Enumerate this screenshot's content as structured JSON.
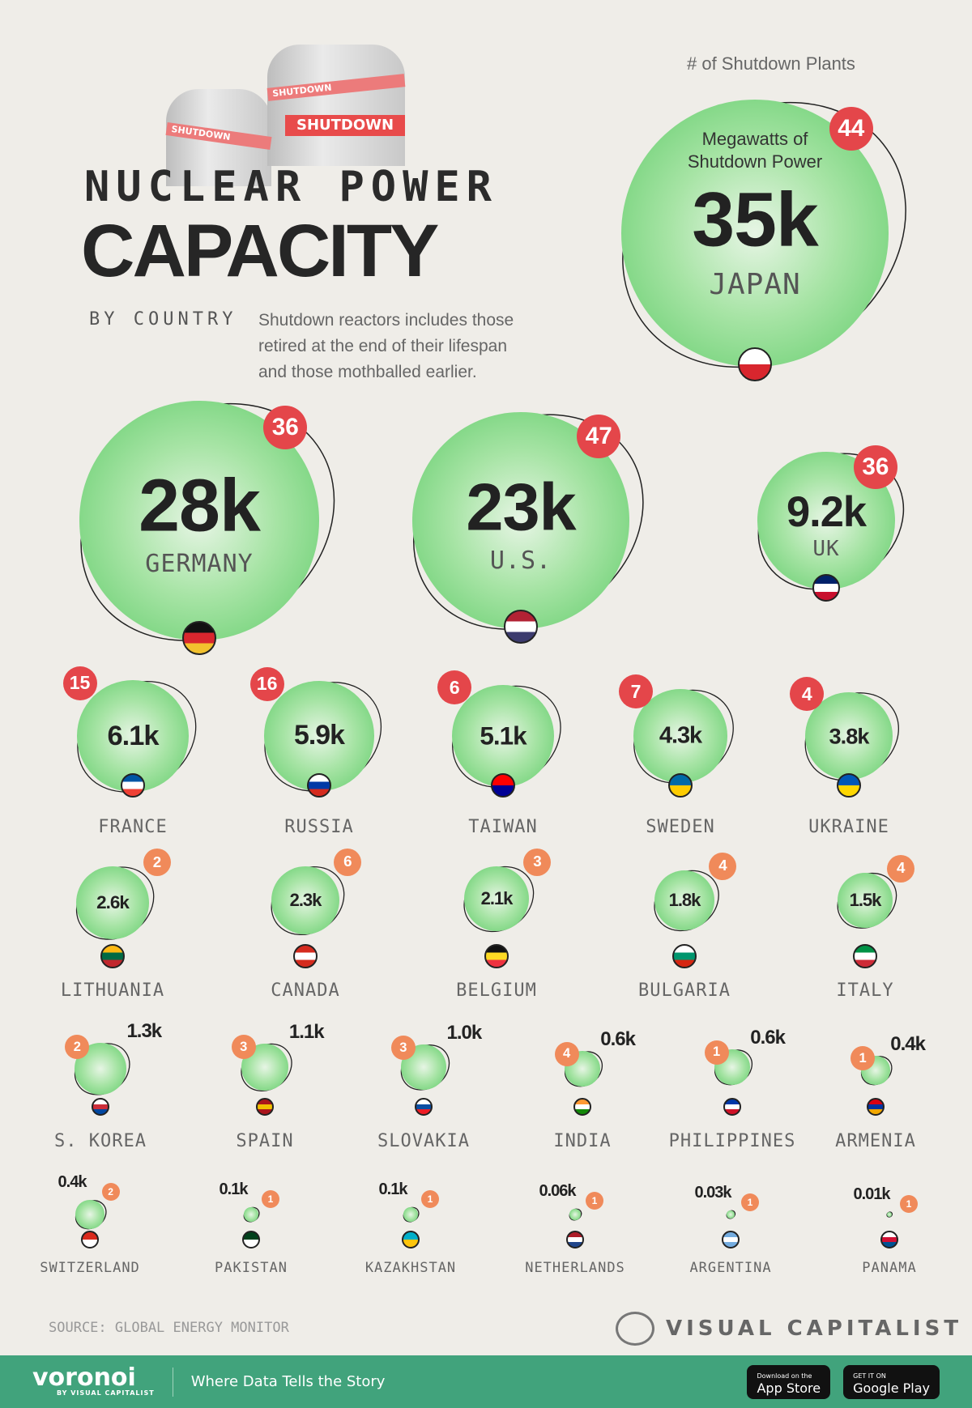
{
  "header": {
    "title_line1": "NUCLEAR POWER",
    "title_line2": "CAPACITY",
    "title_line3": "BY COUNTRY",
    "description": "Shutdown reactors includes those retired at the end of their lifespan and those mothballed earlier.",
    "illustration_text": "SHUTDOWN"
  },
  "legend": {
    "count_label": "# of Shutdown Plants",
    "value_label": "Megawatts of Shutdown Power"
  },
  "colors": {
    "bubble": "#5ecb68",
    "badge_large": "#e4464a",
    "badge_small": "#f08a5a",
    "footer": "#41a37c"
  },
  "chart_data": {
    "type": "bubble",
    "value_unit": "MW of shutdown power",
    "countries": [
      {
        "name": "JAPAN",
        "value": "35k",
        "plants": 44,
        "flag": [
          "#ffffff",
          "#d8262e"
        ]
      },
      {
        "name": "GERMANY",
        "value": "28k",
        "plants": 36,
        "flag": [
          "#111111",
          "#d8262e",
          "#f2c12e"
        ]
      },
      {
        "name": "U.S.",
        "value": "23k",
        "plants": 47,
        "flag": [
          "#b22234",
          "#ffffff",
          "#3c3b6e"
        ]
      },
      {
        "name": "UK",
        "value": "9.2k",
        "plants": 36,
        "flag": [
          "#012169",
          "#ffffff",
          "#c8102e"
        ]
      },
      {
        "name": "FRANCE",
        "value": "6.1k",
        "plants": 15,
        "flag": [
          "#0055a4",
          "#ffffff",
          "#ef4135"
        ]
      },
      {
        "name": "RUSSIA",
        "value": "5.9k",
        "plants": 16,
        "flag": [
          "#ffffff",
          "#0039a6",
          "#d52b1e"
        ]
      },
      {
        "name": "TAIWAN",
        "value": "5.1k",
        "plants": 6,
        "flag": [
          "#fe0000",
          "#000095"
        ]
      },
      {
        "name": "SWEDEN",
        "value": "4.3k",
        "plants": 7,
        "flag": [
          "#006aa7",
          "#fecc00"
        ]
      },
      {
        "name": "UKRAINE",
        "value": "3.8k",
        "plants": 4,
        "flag": [
          "#0057b7",
          "#ffd700"
        ]
      },
      {
        "name": "LITHUANIA",
        "value": "2.6k",
        "plants": 2,
        "flag": [
          "#fdb913",
          "#006a44",
          "#c1272d"
        ]
      },
      {
        "name": "CANADA",
        "value": "2.3k",
        "plants": 6,
        "flag": [
          "#d52b1e",
          "#ffffff",
          "#d52b1e"
        ]
      },
      {
        "name": "BELGIUM",
        "value": "2.1k",
        "plants": 3,
        "flag": [
          "#111111",
          "#fdda24",
          "#ef3340"
        ]
      },
      {
        "name": "BULGARIA",
        "value": "1.8k",
        "plants": 4,
        "flag": [
          "#ffffff",
          "#00966e",
          "#d62612"
        ]
      },
      {
        "name": "ITALY",
        "value": "1.5k",
        "plants": 4,
        "flag": [
          "#009246",
          "#ffffff",
          "#ce2b37"
        ]
      },
      {
        "name": "S. KOREA",
        "value": "1.3k",
        "plants": 2,
        "flag": [
          "#ffffff",
          "#cd2e3a",
          "#0047a0"
        ]
      },
      {
        "name": "SPAIN",
        "value": "1.1k",
        "plants": 3,
        "flag": [
          "#aa151b",
          "#f1bf00",
          "#aa151b"
        ]
      },
      {
        "name": "SLOVAKIA",
        "value": "1.0k",
        "plants": 3,
        "flag": [
          "#ffffff",
          "#0b4ea2",
          "#ee1c25"
        ]
      },
      {
        "name": "INDIA",
        "value": "0.6k",
        "plants": 4,
        "flag": [
          "#ff9933",
          "#ffffff",
          "#138808"
        ]
      },
      {
        "name": "PHILIPPINES",
        "value": "0.6k",
        "plants": 1,
        "flag": [
          "#0038a8",
          "#ffffff",
          "#ce1126"
        ]
      },
      {
        "name": "ARMENIA",
        "value": "0.4k",
        "plants": 1,
        "flag": [
          "#d90012",
          "#0033a0",
          "#f2a800"
        ]
      },
      {
        "name": "SWITZERLAND",
        "value": "0.4k",
        "plants": 2,
        "flag": [
          "#da291c",
          "#ffffff"
        ]
      },
      {
        "name": "PAKISTAN",
        "value": "0.1k",
        "plants": 1,
        "flag": [
          "#01411c",
          "#ffffff"
        ]
      },
      {
        "name": "KAZAKHSTAN",
        "value": "0.1k",
        "plants": 1,
        "flag": [
          "#00afca",
          "#fec50c"
        ]
      },
      {
        "name": "NETHERLANDS",
        "value": "0.06k",
        "plants": 1,
        "flag": [
          "#ae1c28",
          "#ffffff",
          "#21468b"
        ]
      },
      {
        "name": "ARGENTINA",
        "value": "0.03k",
        "plants": 1,
        "flag": [
          "#74acdf",
          "#ffffff",
          "#74acdf"
        ]
      },
      {
        "name": "PANAMA",
        "value": "0.01k",
        "plants": 1,
        "flag": [
          "#ffffff",
          "#d21034",
          "#005293"
        ]
      }
    ]
  },
  "footer": {
    "source": "SOURCE: GLOBAL ENERGY MONITOR",
    "brand": "VISUAL CAPITALIST",
    "voronoi": "voronoi",
    "voronoi_sub": "BY VISUAL CAPITALIST",
    "tagline": "Where Data Tells the Story",
    "app_store_small": "Download on the",
    "app_store": "App Store",
    "google_play_small": "GET IT ON",
    "google_play": "Google Play"
  }
}
